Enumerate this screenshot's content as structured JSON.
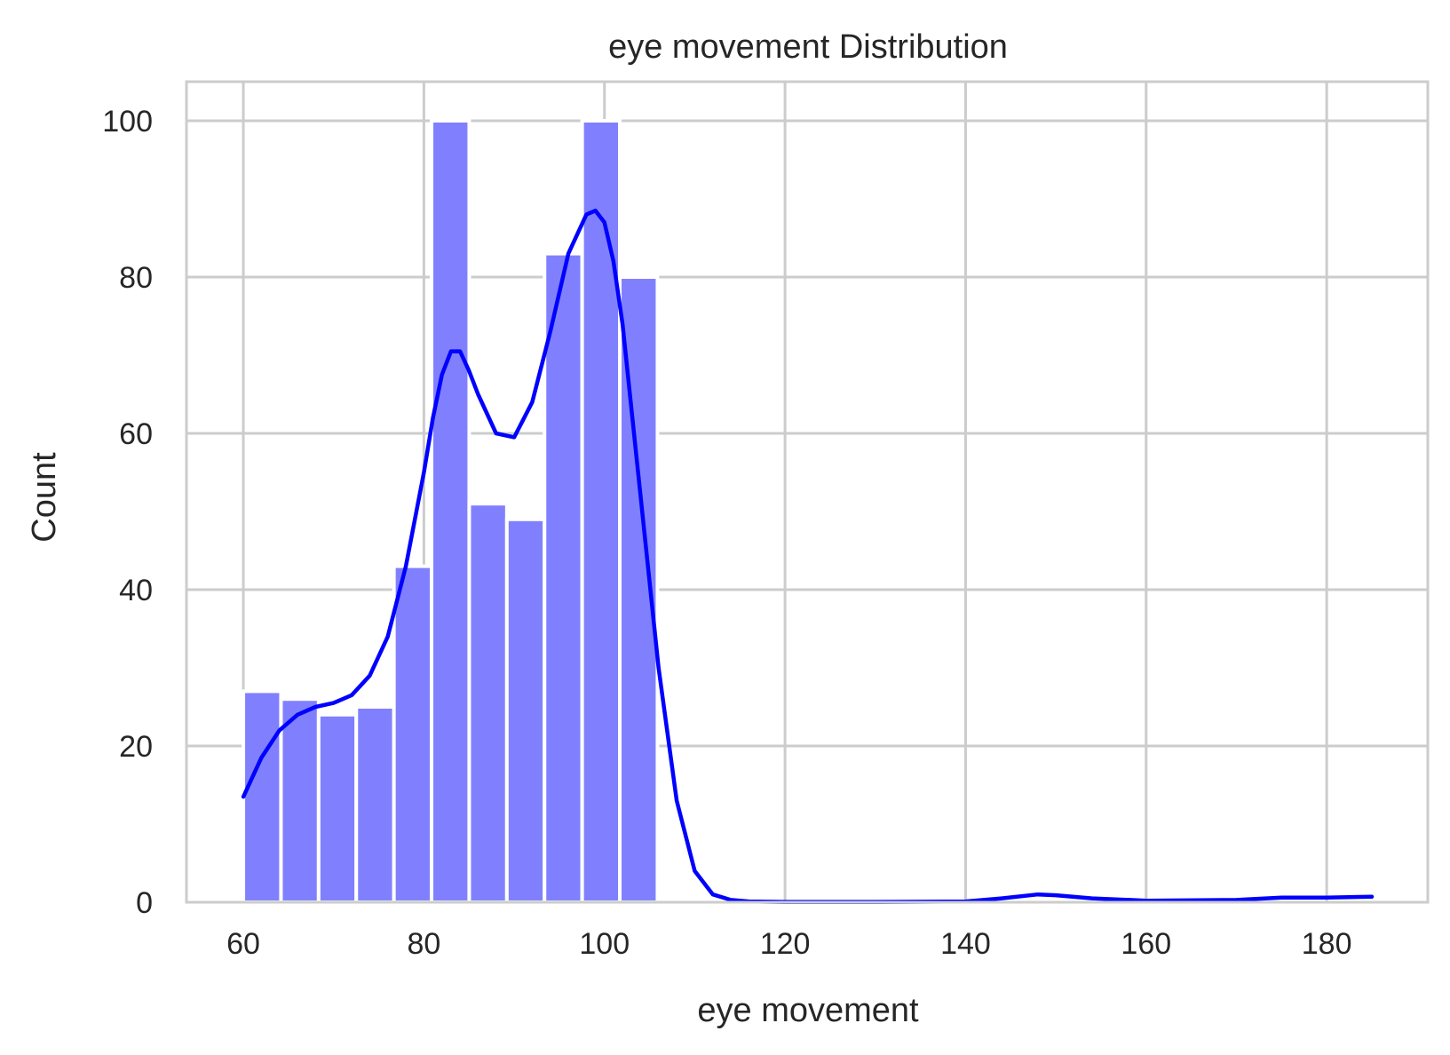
{
  "chart_data": {
    "type": "bar",
    "title": "eye movement Distribution",
    "xlabel": "eye movement",
    "ylabel": "Count",
    "xlim": [
      53.7,
      191.2
    ],
    "ylim": [
      0,
      105
    ],
    "xticks": [
      60,
      80,
      100,
      120,
      140,
      160,
      180
    ],
    "yticks": [
      0,
      20,
      40,
      60,
      80,
      100
    ],
    "grid": true,
    "bins": {
      "edges": [
        60,
        64.17,
        68.34,
        72.51,
        76.68,
        80.85,
        85.02,
        89.19,
        93.36,
        97.53,
        101.7,
        105.87
      ],
      "counts": [
        27,
        26,
        24,
        25,
        43,
        100,
        51,
        49,
        83,
        100,
        80
      ]
    },
    "kde": {
      "x": [
        60,
        62,
        64,
        66,
        68,
        70,
        72,
        74,
        76,
        78,
        80,
        81,
        82,
        83,
        84,
        85,
        86,
        88,
        90,
        92,
        94,
        96,
        98,
        99,
        100,
        101,
        102,
        104,
        106,
        108,
        110,
        112,
        114,
        116,
        120,
        130,
        140,
        144,
        148,
        150,
        154,
        160,
        170,
        175,
        180,
        185
      ],
      "y": [
        13.5,
        18.5,
        22,
        24,
        25,
        25.5,
        26.5,
        29,
        34,
        43,
        55,
        62,
        67.5,
        70.5,
        70.5,
        68,
        65,
        60,
        59.5,
        64,
        73,
        83,
        88,
        88.5,
        87,
        82,
        74,
        52,
        30,
        13,
        4,
        1,
        0.3,
        0.1,
        0.05,
        0.05,
        0.1,
        0.5,
        1,
        0.9,
        0.5,
        0.2,
        0.3,
        0.6,
        0.6,
        0.7
      ]
    },
    "colors": {
      "bar_fill": "#8080ff",
      "kde_line": "#0000ff",
      "grid": "#cccccc",
      "spine": "#cccccc"
    }
  }
}
